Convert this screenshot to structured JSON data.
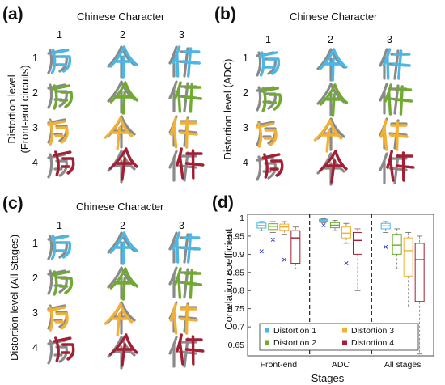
{
  "panels": [
    {
      "id": "a",
      "letter": "(a)",
      "title": "Chinese Character",
      "ylabel_lines": [
        "Distortion level",
        "(Front-end circuits)"
      ],
      "cols": [
        "1",
        "2",
        "3"
      ],
      "rows": [
        "1",
        "2",
        "3",
        "4"
      ]
    },
    {
      "id": "b",
      "letter": "(b)",
      "title": "Chinese Character",
      "ylabel_lines": [
        "Distortion level (ADC)"
      ],
      "cols": [
        "1",
        "2",
        "3"
      ],
      "rows": [
        "1",
        "2",
        "3",
        "4"
      ]
    },
    {
      "id": "c",
      "letter": "(c)",
      "title": "Chinese Character",
      "ylabel_lines": [
        "Distortion level (All Stages)"
      ],
      "cols": [
        "1",
        "2",
        "3"
      ],
      "rows": [
        "1",
        "2",
        "3",
        "4"
      ]
    }
  ],
  "level_colors": [
    "#4ab8e6",
    "#6fab2f",
    "#f2b134",
    "#a41e34"
  ],
  "reference_color": "#8a8a8a",
  "chart_data": {
    "letter": "(d)",
    "type": "box",
    "xlabel": "Stages",
    "ylabel": "Correlation coefficient",
    "ylim": [
      0.62,
      1.01
    ],
    "yticks": [
      0.65,
      0.7,
      0.75,
      0.8,
      0.85,
      0.9,
      0.95,
      1
    ],
    "ytick_labels": [
      "0.65",
      "0.7",
      "0.75",
      "0.8",
      "0.85",
      "0.9",
      "0.95",
      "1"
    ],
    "categories": [
      "Front-end",
      "ADC",
      "All stages"
    ],
    "series": [
      {
        "name": "Distortion 1",
        "color": "#4ab8e6",
        "boxes": [
          {
            "min": 0.965,
            "q1": 0.972,
            "median": 0.979,
            "q3": 0.986,
            "max": 0.99,
            "outliers": [
              0.908
            ]
          },
          {
            "min": 0.987,
            "q1": 0.991,
            "median": 0.994,
            "q3": 0.996,
            "max": 0.998,
            "outliers": [
              0.98
            ]
          },
          {
            "min": 0.96,
            "q1": 0.97,
            "median": 0.978,
            "q3": 0.985,
            "max": 0.99,
            "outliers": [
              0.92
            ]
          }
        ]
      },
      {
        "name": "Distortion 2",
        "color": "#6fab2f",
        "boxes": [
          {
            "min": 0.96,
            "q1": 0.968,
            "median": 0.977,
            "q3": 0.984,
            "max": 0.99,
            "outliers": [
              0.94
            ]
          },
          {
            "min": 0.965,
            "q1": 0.973,
            "median": 0.98,
            "q3": 0.987,
            "max": 0.993,
            "outliers": []
          },
          {
            "min": 0.86,
            "q1": 0.9,
            "median": 0.925,
            "q3": 0.955,
            "max": 0.97,
            "outliers": []
          }
        ]
      },
      {
        "name": "Distortion 3",
        "color": "#f2b134",
        "boxes": [
          {
            "min": 0.955,
            "q1": 0.966,
            "median": 0.975,
            "q3": 0.983,
            "max": 0.99,
            "outliers": [
              0.885
            ]
          },
          {
            "min": 0.93,
            "q1": 0.945,
            "median": 0.958,
            "q3": 0.975,
            "max": 0.985,
            "outliers": [
              0.875
            ]
          },
          {
            "min": 0.755,
            "q1": 0.84,
            "median": 0.91,
            "q3": 0.945,
            "max": 0.96,
            "outliers": []
          }
        ]
      },
      {
        "name": "Distortion 4",
        "color": "#a41e34",
        "boxes": [
          {
            "min": 0.86,
            "q1": 0.875,
            "median": 0.945,
            "q3": 0.965,
            "max": 0.975,
            "outliers": []
          },
          {
            "min": 0.8,
            "q1": 0.9,
            "median": 0.938,
            "q3": 0.96,
            "max": 0.97,
            "outliers": []
          },
          {
            "min": 0.625,
            "q1": 0.77,
            "median": 0.885,
            "q3": 0.93,
            "max": 0.95,
            "outliers": []
          }
        ]
      }
    ],
    "legend": [
      "Distortion 1",
      "Distortion 3",
      "Distortion 2",
      "Distortion 4"
    ],
    "legend_position": "bottom-center",
    "separators": "dashed vertical lines between stages",
    "grid": false
  }
}
